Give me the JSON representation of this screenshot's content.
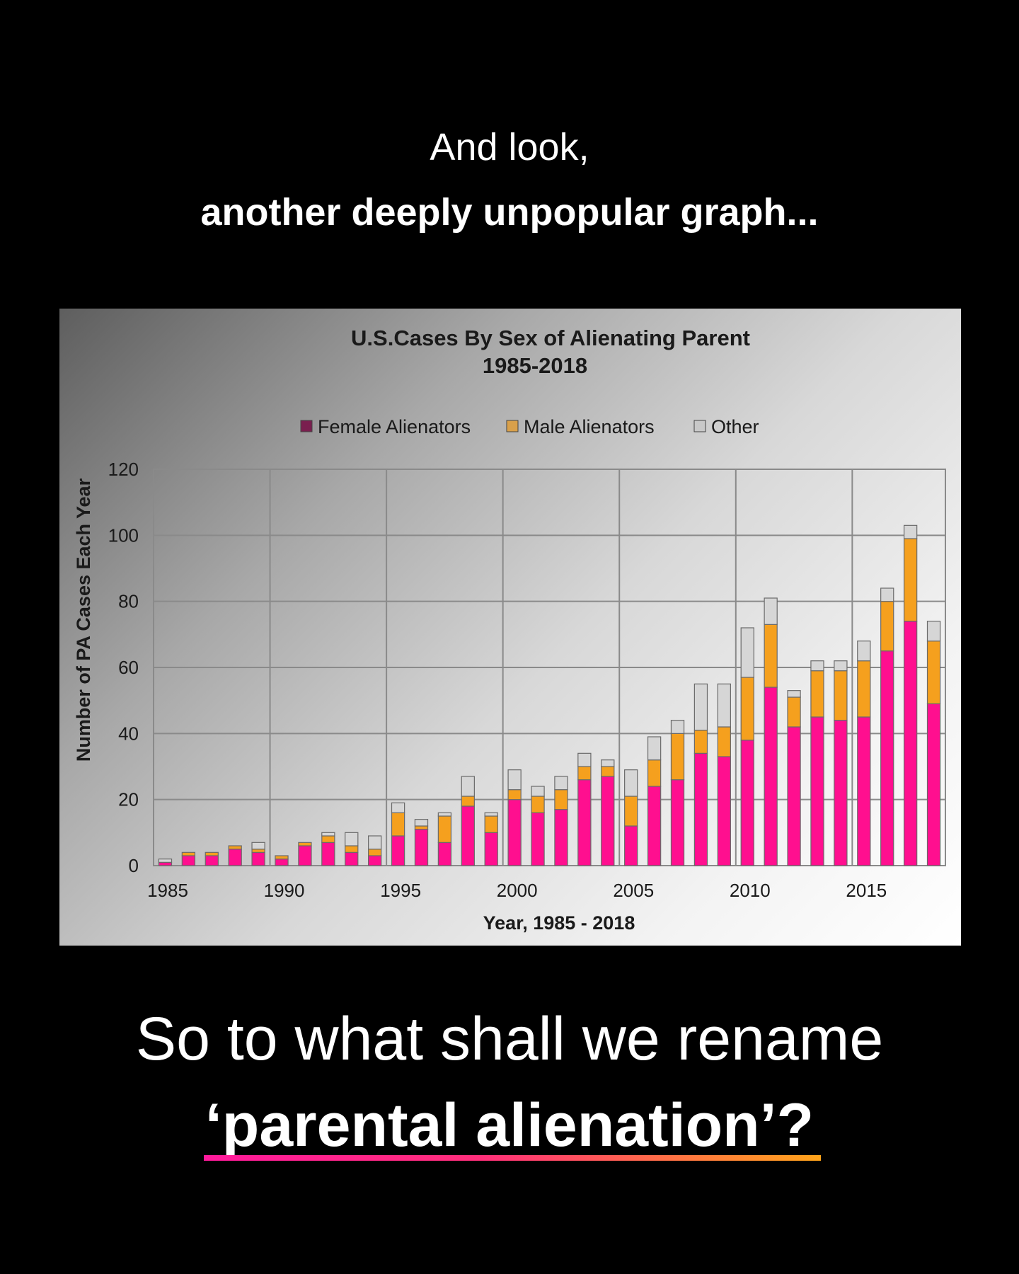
{
  "heading": {
    "line1": "And look,",
    "line2": "another deeply unpopular graph..."
  },
  "question": {
    "line1": "So to what shall we rename",
    "line2": "‘parental alienation’?"
  },
  "colors": {
    "female": "#ff0f8f",
    "male": "#f5a01e",
    "other": "#d6d6d6",
    "legend_female": "#7a1f4f",
    "legend_male": "#d9a04a",
    "legend_other": "#c8c8c8",
    "underline_start": "#ff1a9c",
    "underline_end": "#ffa41a"
  },
  "chart_data": {
    "type": "bar",
    "stacked": true,
    "title": "U.S.Cases By Sex of Alienating Parent",
    "subtitle": "1985-2018",
    "xlabel": "Year, 1985 - 2018",
    "ylabel": "Number of PA Cases Each Year",
    "ylim": [
      0,
      120
    ],
    "yticks": [
      0,
      20,
      40,
      60,
      80,
      100,
      120
    ],
    "xticks": [
      1985,
      1990,
      1995,
      2000,
      2005,
      2010,
      2015
    ],
    "grid": true,
    "legend_position": "top",
    "categories": [
      1985,
      1986,
      1987,
      1988,
      1989,
      1990,
      1991,
      1992,
      1993,
      1994,
      1995,
      1996,
      1997,
      1998,
      1999,
      2000,
      2001,
      2002,
      2003,
      2004,
      2005,
      2006,
      2007,
      2008,
      2009,
      2010,
      2011,
      2012,
      2013,
      2014,
      2015,
      2016,
      2017,
      2018
    ],
    "series": [
      {
        "name": "Female Alienators",
        "values": [
          1,
          3,
          3,
          5,
          4,
          2,
          6,
          7,
          4,
          3,
          9,
          11,
          7,
          18,
          10,
          20,
          16,
          17,
          26,
          27,
          12,
          24,
          26,
          34,
          33,
          38,
          54,
          42,
          45,
          44,
          45,
          65,
          74,
          49
        ]
      },
      {
        "name": "Male Alienators",
        "values": [
          0,
          1,
          1,
          1,
          1,
          1,
          1,
          2,
          2,
          2,
          7,
          1,
          8,
          3,
          5,
          3,
          5,
          6,
          4,
          3,
          9,
          8,
          14,
          7,
          9,
          19,
          19,
          9,
          14,
          15,
          17,
          15,
          25,
          19
        ]
      },
      {
        "name": "Other",
        "values": [
          1,
          0,
          0,
          0,
          2,
          0,
          0,
          1,
          4,
          4,
          3,
          2,
          1,
          6,
          1,
          6,
          3,
          4,
          4,
          2,
          8,
          7,
          4,
          14,
          13,
          15,
          8,
          2,
          3,
          3,
          6,
          4,
          4,
          6
        ]
      }
    ]
  }
}
